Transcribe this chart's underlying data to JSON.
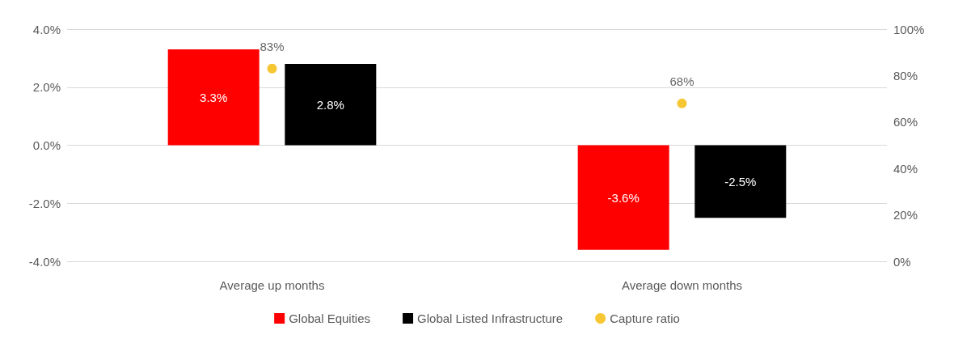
{
  "chart_data": {
    "type": "bar",
    "categories": [
      "Average up months",
      "Average down months"
    ],
    "series": [
      {
        "name": "Global Equities",
        "color": "#ff0000",
        "values": [
          3.3,
          -3.6
        ],
        "value_labels": [
          "3.3%",
          "-3.6%"
        ]
      },
      {
        "name": "Global Listed Infrastructure",
        "color": "#000000",
        "values": [
          2.8,
          -2.5
        ],
        "value_labels": [
          "2.8%",
          "-2.5%"
        ]
      },
      {
        "name": "Capture ratio",
        "type": "scatter",
        "axis": "y2",
        "marker": "circle",
        "color": "#f5b800",
        "values": [
          83,
          68
        ],
        "value_labels": [
          "83%",
          "68%"
        ]
      }
    ],
    "ylim": [
      -4,
      4
    ],
    "yticks": [
      {
        "value": -4,
        "label": "-4.0%"
      },
      {
        "value": -2,
        "label": "-2.0%"
      },
      {
        "value": 0,
        "label": "0.0%"
      },
      {
        "value": 2,
        "label": "2.0%"
      },
      {
        "value": 4,
        "label": "4.0%"
      }
    ],
    "y2lim": [
      0,
      100
    ],
    "y2ticks": [
      {
        "value": 0,
        "label": "0%"
      },
      {
        "value": 20,
        "label": "20%"
      },
      {
        "value": 40,
        "label": "40%"
      },
      {
        "value": 60,
        "label": "60%"
      },
      {
        "value": 80,
        "label": "80%"
      },
      {
        "value": 100,
        "label": "100%"
      }
    ],
    "grid": "y",
    "legend": "bottom"
  }
}
